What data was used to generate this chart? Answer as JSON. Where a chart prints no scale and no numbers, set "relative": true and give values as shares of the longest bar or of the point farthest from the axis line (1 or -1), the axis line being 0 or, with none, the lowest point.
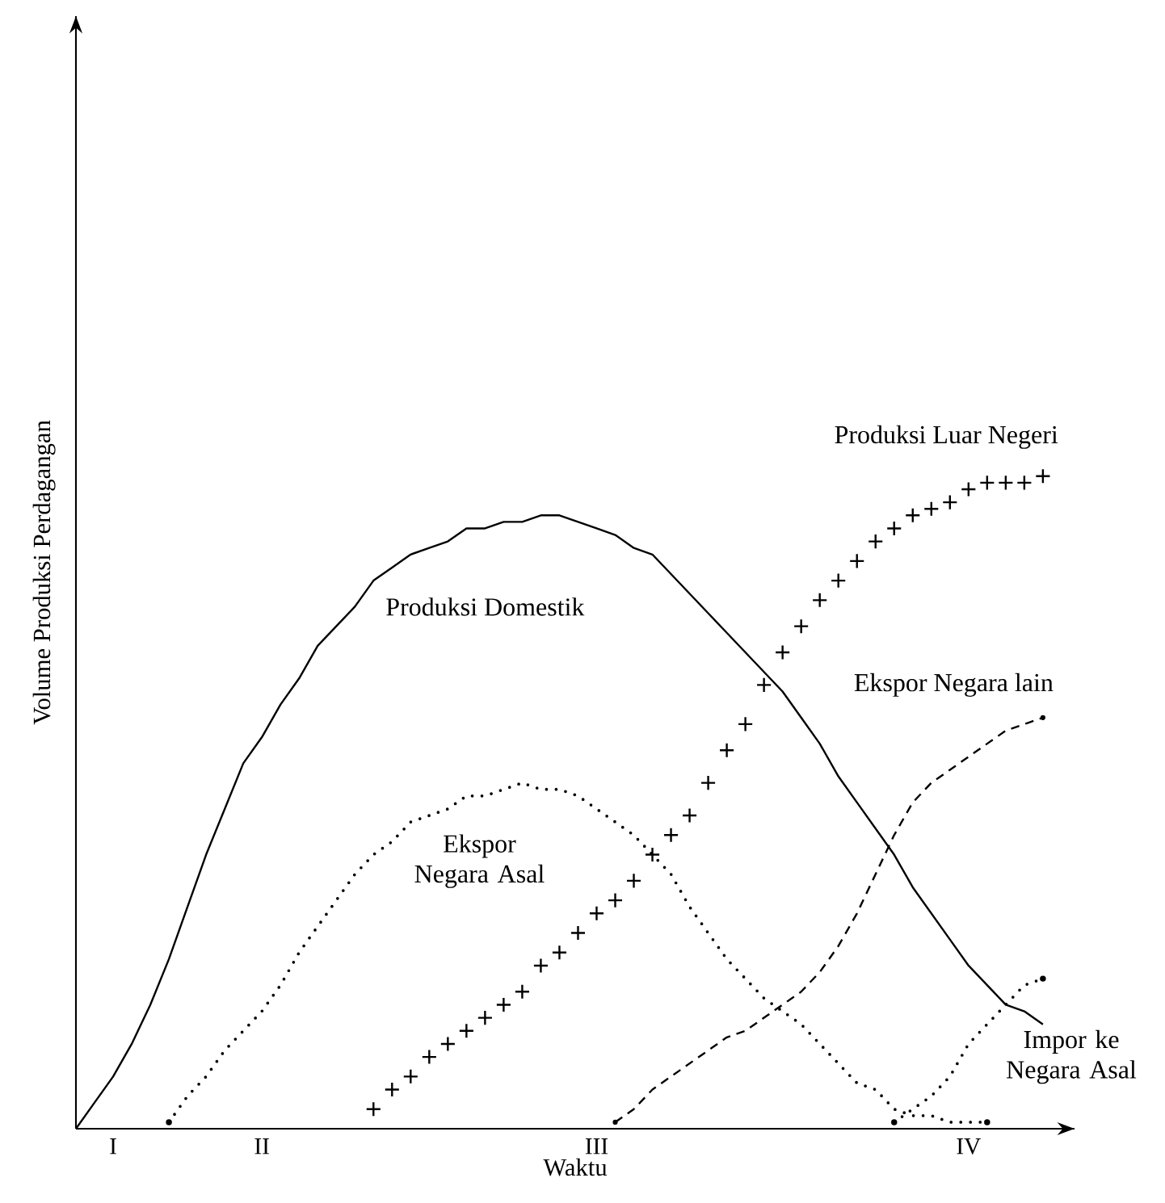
{
  "chart_data": {
    "type": "line",
    "relative": true,
    "xlabel": "Waktu",
    "ylabel": "Volume Produksi Perdagangan",
    "categories": [
      null,
      null,
      "I",
      null,
      null,
      null,
      null,
      null,
      null,
      null,
      "II",
      null,
      null,
      null,
      null,
      null,
      null,
      null,
      null,
      null,
      null,
      null,
      null,
      null,
      null,
      null,
      null,
      null,
      "III",
      null,
      null,
      null,
      null,
      null,
      null,
      null,
      null,
      null,
      null,
      null,
      null,
      null,
      null,
      null,
      null,
      null,
      null,
      null,
      "IV",
      null,
      null,
      null,
      null,
      null
    ],
    "series": [
      {
        "name": "Produksi Domestik",
        "color": "#000000",
        "line_style": "solid",
        "values": [
          0,
          0.04,
          0.08,
          0.13,
          0.19,
          0.26,
          0.34,
          0.42,
          0.49,
          0.56,
          0.6,
          0.65,
          0.69,
          0.74,
          0.77,
          0.8,
          0.84,
          0.86,
          0.88,
          0.89,
          0.9,
          0.92,
          0.92,
          0.93,
          0.93,
          0.94,
          0.94,
          0.93,
          0.92,
          0.91,
          0.89,
          0.88,
          0.85,
          0.82,
          0.79,
          0.76,
          0.73,
          0.7,
          0.67,
          0.63,
          0.59,
          0.54,
          0.5,
          0.46,
          0.42,
          0.37,
          0.33,
          0.29,
          0.25,
          0.22,
          0.19,
          0.18,
          0.16,
          null
        ]
      },
      {
        "name": "Ekspor Negara Asal",
        "color": "#000000",
        "line_style": "dotted",
        "values": [
          null,
          null,
          null,
          null,
          null,
          0.01,
          0.05,
          0.08,
          0.12,
          0.15,
          0.18,
          0.22,
          0.27,
          0.31,
          0.35,
          0.39,
          0.42,
          0.44,
          0.47,
          0.48,
          0.49,
          0.51,
          0.51,
          0.52,
          0.53,
          0.52,
          0.52,
          0.51,
          0.49,
          0.47,
          0.45,
          0.42,
          0.39,
          0.34,
          0.3,
          0.26,
          0.23,
          0.2,
          0.18,
          0.16,
          0.13,
          0.1,
          0.07,
          0.06,
          0.03,
          0.02,
          0.02,
          0.01,
          0.01,
          0.01,
          null,
          null,
          null,
          null
        ]
      },
      {
        "name": "Produksi Luar Negeri",
        "color": "#000000",
        "type": "scatter",
        "marker": "cross",
        "values": [
          null,
          null,
          null,
          null,
          null,
          null,
          null,
          null,
          null,
          null,
          null,
          null,
          null,
          null,
          null,
          null,
          0.03,
          0.06,
          0.08,
          0.11,
          0.13,
          0.15,
          0.17,
          0.19,
          0.21,
          0.25,
          0.27,
          0.3,
          0.33,
          0.35,
          0.38,
          0.42,
          0.45,
          0.48,
          0.53,
          0.58,
          0.62,
          0.68,
          0.73,
          0.77,
          0.81,
          0.84,
          0.87,
          0.9,
          0.92,
          0.94,
          0.95,
          0.96,
          0.98,
          0.99,
          0.99,
          0.99,
          1,
          null
        ]
      },
      {
        "name": "Ekspor Negara lain",
        "color": "#000000",
        "line_style": "dashed",
        "values": [
          null,
          null,
          null,
          null,
          null,
          null,
          null,
          null,
          null,
          null,
          null,
          null,
          null,
          null,
          null,
          null,
          null,
          null,
          null,
          null,
          null,
          null,
          null,
          null,
          null,
          null,
          null,
          null,
          null,
          0.01,
          0.03,
          0.06,
          0.08,
          0.1,
          0.12,
          0.14,
          0.15,
          0.17,
          0.19,
          0.21,
          0.24,
          0.28,
          0.33,
          0.39,
          0.45,
          0.5,
          0.53,
          0.55,
          0.57,
          0.59,
          0.61,
          0.62,
          0.63,
          null
        ]
      },
      {
        "name": "Impor ke Negara Asal",
        "color": "#000000",
        "line_style": "dotted",
        "values": [
          null,
          null,
          null,
          null,
          null,
          null,
          null,
          null,
          null,
          null,
          null,
          null,
          null,
          null,
          null,
          null,
          null,
          null,
          null,
          null,
          null,
          null,
          null,
          null,
          null,
          null,
          null,
          null,
          null,
          null,
          null,
          null,
          null,
          null,
          null,
          null,
          null,
          null,
          null,
          null,
          null,
          null,
          null,
          null,
          0.01,
          0.03,
          0.05,
          0.08,
          0.13,
          0.16,
          0.19,
          0.22,
          0.23,
          null
        ]
      }
    ]
  }
}
